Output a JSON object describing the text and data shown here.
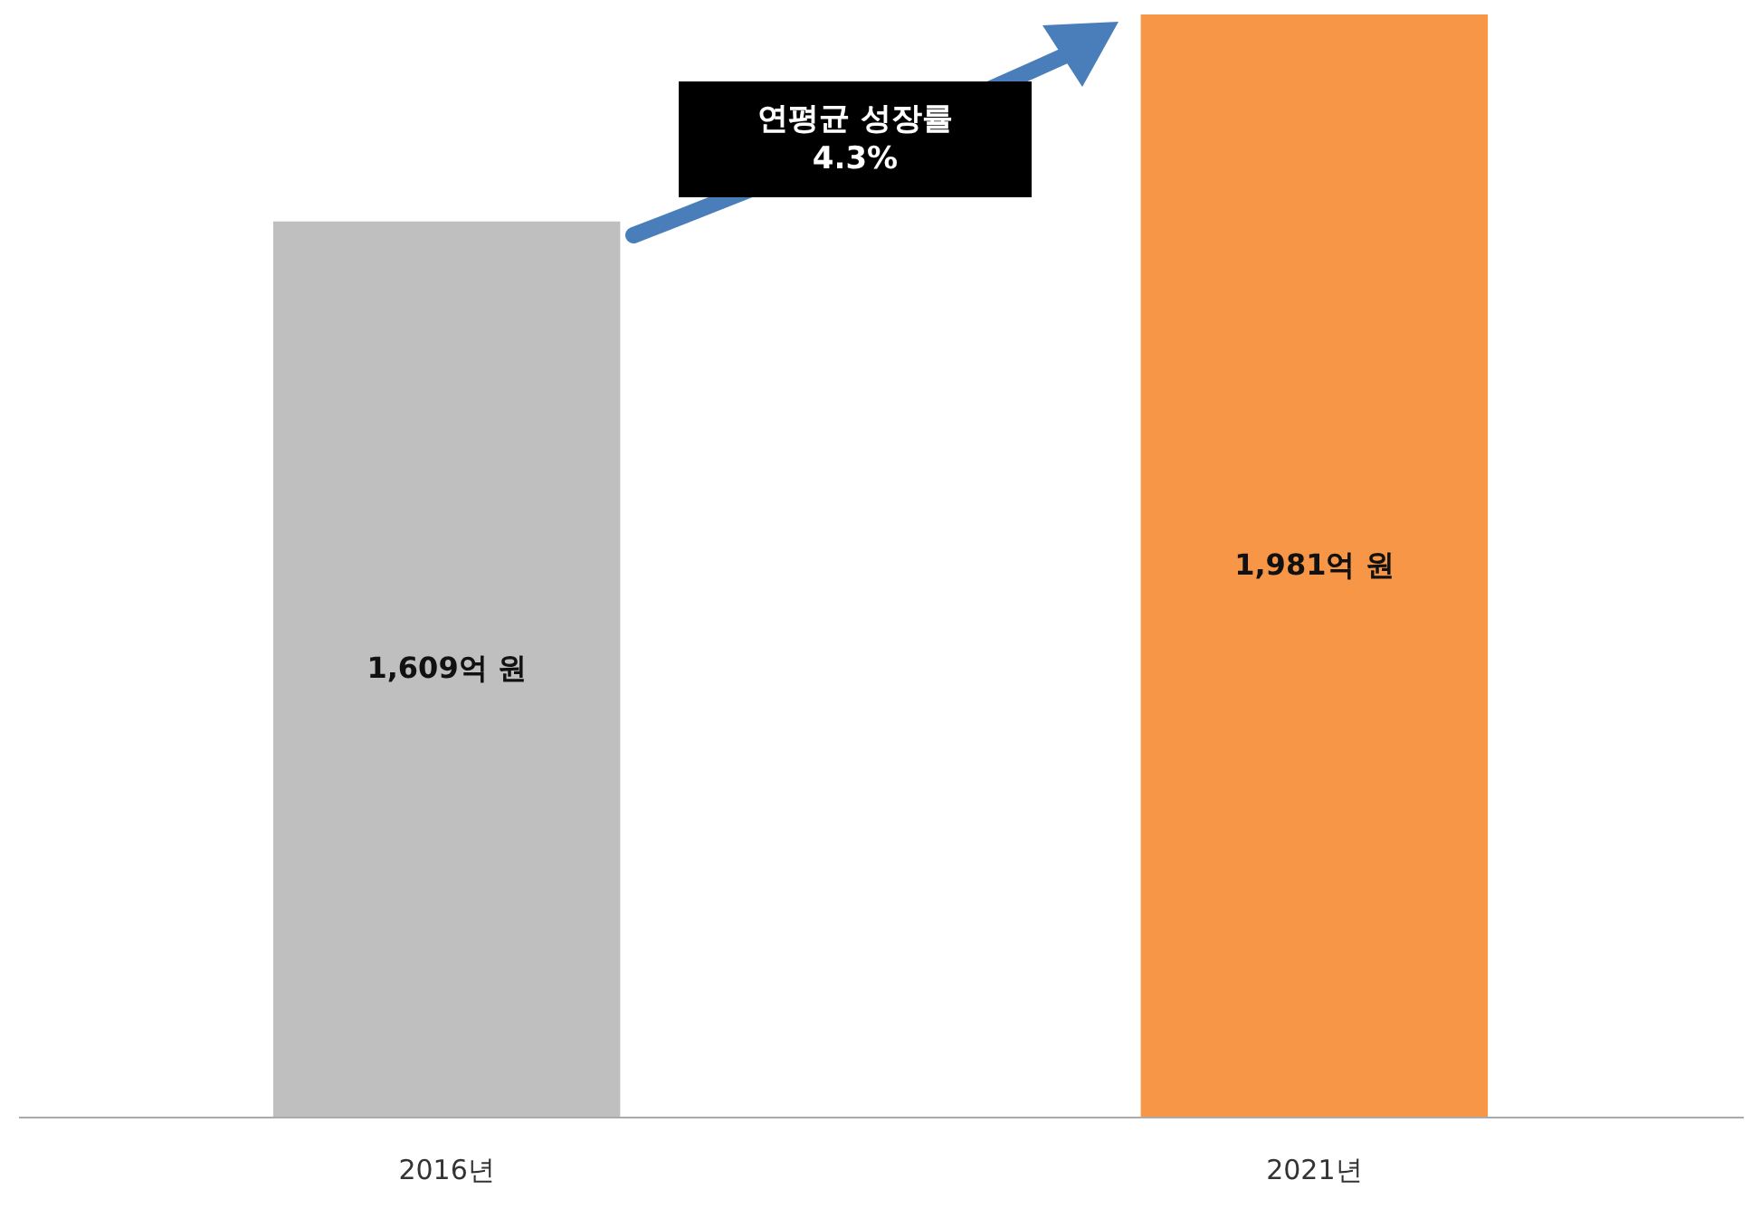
{
  "chart_data": {
    "type": "bar",
    "categories": [
      "2016년",
      "2021년"
    ],
    "values": [
      1609,
      1981
    ],
    "colors": [
      "#bfbfbf",
      "#f79646"
    ],
    "value_labels": [
      "1,609억 원",
      "1,981억 원"
    ],
    "annotations": [
      "연평균 성장률\n4.3%"
    ]
  }
}
